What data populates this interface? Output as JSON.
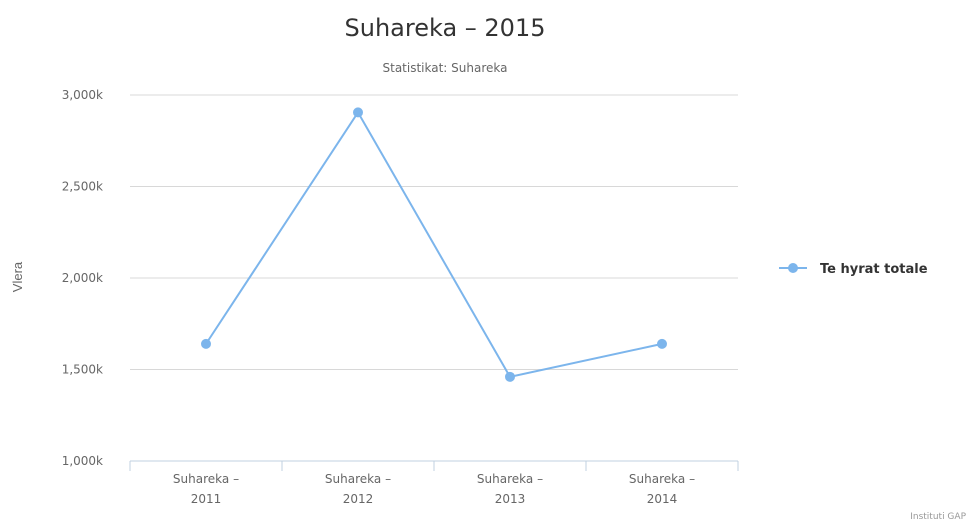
{
  "chart_data": {
    "type": "line",
    "title": "Suhareka – 2015",
    "subtitle": "Statistikat: Suhareka",
    "ylabel": "Vlera",
    "xlabel": "",
    "categories": [
      [
        "Suhareka –",
        "2011"
      ],
      [
        "Suhareka –",
        "2012"
      ],
      [
        "Suhareka –",
        "2013"
      ],
      [
        "Suhareka –",
        "2014"
      ]
    ],
    "series": [
      {
        "name": "Te hyrat totale",
        "color": "#7cb5ec",
        "values": [
          1640,
          2905,
          1460,
          1640
        ]
      }
    ],
    "ylim": [
      1000,
      3000
    ],
    "yticks": [
      1000,
      1500,
      2000,
      2500,
      3000
    ],
    "ytick_labels": [
      "1,000k",
      "1,500k",
      "2,000k",
      "2,500k",
      "3,000k"
    ],
    "grid": true,
    "legend_position": "right",
    "credit": "Instituti GAP"
  }
}
